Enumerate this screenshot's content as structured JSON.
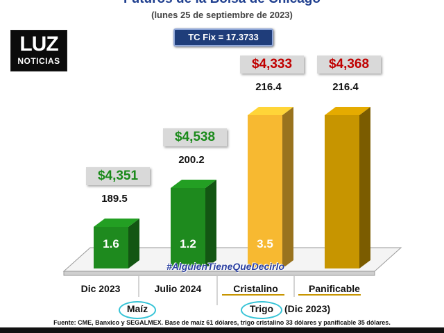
{
  "header": {
    "title": "Futuros de la Bolsa de Chicago",
    "subtitle": "(lunes 25 de septiembre de 2023)",
    "tc_fix": "TC Fix = 17.3733"
  },
  "logo": {
    "top": "LUZ",
    "bottom": "NOTICIAS"
  },
  "hashtag": "#AlguienTieneQueDecirlo",
  "groups": {
    "maiz": "Maíz",
    "trigo": "Trigo",
    "trigo_note": "(Dic 2023)"
  },
  "footer": "Fuente: CME, Banxico y SEGALMEX. Base de maíz 61 dólares, trigo cristalino 33 dólares y panificable 35 dólares.",
  "colors": {
    "maiz": "#1e8a1e",
    "trigo_cristalino": "#f7b931",
    "trigo_panificable": "#c79500",
    "price_green": "#1a8a1a",
    "price_red": "#c00000"
  },
  "chart_data": {
    "type": "bar",
    "title": "Futuros de la Bolsa de Chicago",
    "subtitle": "(lunes 25 de septiembre de 2023)",
    "categories": [
      "Dic 2023",
      "Julio 2024",
      "Cristalino",
      "Panificable"
    ],
    "series": [
      {
        "values": [
          189.5,
          200.2,
          216.4,
          216.4
        ]
      }
    ],
    "bar_labels": [
      "1.6",
      "1.2",
      "3.5",
      ""
    ],
    "price_labels": [
      "$4,351",
      "$4,538",
      "$4,333",
      "$4,368"
    ],
    "value_labels": [
      "189.5",
      "200.2",
      "216.4",
      "216.4"
    ],
    "ylim": [
      0,
      230
    ],
    "grid": false
  }
}
